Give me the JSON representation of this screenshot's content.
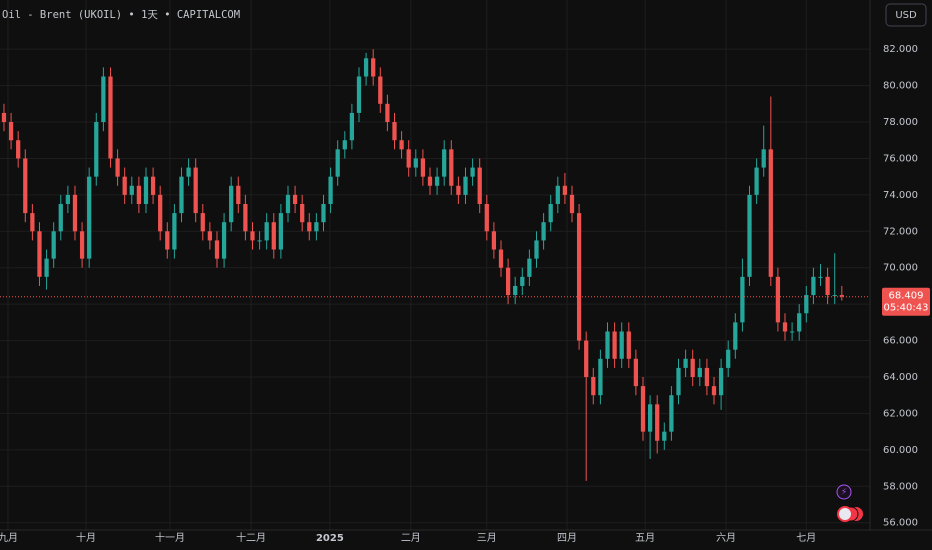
{
  "chart_data": {
    "type": "candlestick",
    "title": "Oil - Brent (UKOIL) • 1天 • CAPITALCOM",
    "currency": "USD",
    "last_price": 68.409,
    "countdown": "05:40:43",
    "up_color": "#26a69a",
    "down_color": "#ef5350",
    "grid": true,
    "xlim": [
      -0.56,
      121.97
    ],
    "xticks": [
      {
        "value": 0.56,
        "label": "九月"
      },
      {
        "value": 11.55,
        "label": "十月"
      },
      {
        "value": 23.38,
        "label": "十一月"
      },
      {
        "value": 34.8,
        "label": "十二月"
      },
      {
        "value": 45.9,
        "label": "2025"
      },
      {
        "value": 57.3,
        "label": "二月"
      },
      {
        "value": 68,
        "label": "三月"
      },
      {
        "value": 79.3,
        "label": "四月"
      },
      {
        "value": 90.3,
        "label": "五月"
      },
      {
        "value": 101.7,
        "label": "六月"
      },
      {
        "value": 113,
        "label": "七月"
      }
    ],
    "ylim": [
      55.6,
      84.7
    ],
    "yticks": [
      {
        "value": 56,
        "label": "56.000"
      },
      {
        "value": 58,
        "label": "58.000"
      },
      {
        "value": 60,
        "label": "60.000"
      },
      {
        "value": 62,
        "label": "62.000"
      },
      {
        "value": 64,
        "label": "64.000"
      },
      {
        "value": 66,
        "label": "66.000"
      },
      {
        "value": 68,
        "label": "68.000"
      },
      {
        "value": 70,
        "label": "70.000"
      },
      {
        "value": 72,
        "label": "72.000"
      },
      {
        "value": 74,
        "label": "74.000"
      },
      {
        "value": 76,
        "label": "76.000"
      },
      {
        "value": 78,
        "label": "78.000"
      },
      {
        "value": 80,
        "label": "80.000"
      },
      {
        "value": 82,
        "label": "82.000"
      }
    ],
    "open": [
      78.5,
      78,
      77,
      76,
      73,
      72,
      69.5,
      70.5,
      72,
      73.5,
      74,
      72,
      70.5,
      75,
      78,
      80.5,
      76,
      75,
      74,
      74.5,
      73.5,
      75,
      74,
      72,
      71,
      73,
      75,
      75.5,
      73,
      72,
      71.5,
      70.5,
      72.5,
      74.5,
      73.5,
      72,
      71.5,
      71.5,
      72.5,
      71,
      73,
      74,
      73.5,
      72.5,
      72,
      72.5,
      73.5,
      75,
      76.5,
      77,
      78.5,
      80.5,
      81.5,
      80.5,
      79,
      78,
      77,
      76.5,
      75.5,
      76,
      75,
      74.5,
      75,
      76.5,
      74.5,
      74,
      75,
      75.5,
      73.5,
      72,
      71,
      70,
      68.5,
      69,
      69.5,
      70.5,
      71.5,
      72.5,
      73.5,
      74.5,
      74,
      73,
      66,
      64,
      63,
      65,
      66.5,
      65,
      66.5,
      65,
      63.5,
      61,
      62.5,
      60.5,
      61,
      63,
      64.5,
      65,
      64,
      64.5,
      63.5,
      63,
      64.5,
      65.5,
      67,
      69.5,
      74,
      75.5,
      76.5,
      69.5,
      67,
      66.5,
      66.5,
      67.5,
      68.5,
      69.5,
      69.5,
      68.5,
      68.5
    ],
    "high": [
      79,
      78.5,
      77.5,
      76.5,
      73.5,
      72.5,
      71,
      72.5,
      74,
      74.5,
      74.5,
      72.5,
      75.5,
      78.5,
      81,
      81,
      76.5,
      75.5,
      75,
      75,
      75.5,
      75.5,
      74.5,
      72.5,
      73.5,
      75.5,
      76,
      76,
      73.5,
      72.5,
      72,
      73,
      75,
      75,
      74,
      72.5,
      72,
      73,
      73,
      73.5,
      74.5,
      74.5,
      74,
      73,
      73,
      74,
      75.5,
      77,
      77.5,
      79,
      81,
      81.8,
      82,
      81,
      79.5,
      78.5,
      77.5,
      77,
      76.5,
      76.5,
      75.5,
      75.5,
      77,
      77,
      75,
      75.5,
      76,
      76,
      74,
      72.5,
      71.5,
      70.5,
      69.5,
      70,
      71,
      72,
      73,
      74,
      75,
      75.2,
      74.5,
      73.5,
      66.5,
      64.5,
      65.5,
      67,
      67,
      67,
      67,
      65.5,
      64,
      63,
      63,
      61.5,
      63.5,
      65,
      65.5,
      65.5,
      65,
      65,
      64,
      65,
      66,
      67.5,
      70.5,
      74.5,
      76,
      77.8,
      79.4,
      70,
      67.5,
      67,
      68,
      69,
      70,
      70.2,
      70,
      70.8,
      69
    ],
    "low": [
      77.5,
      76.5,
      75.5,
      72.5,
      71.5,
      69,
      68.8,
      70,
      71.5,
      73,
      71.5,
      70,
      70,
      74.5,
      77.5,
      75.5,
      74.5,
      73.5,
      73.5,
      73,
      73,
      73.5,
      71.5,
      70.5,
      70.5,
      72.5,
      74.5,
      72.5,
      71.5,
      71,
      70,
      70,
      72,
      73,
      71.5,
      71,
      71,
      71,
      70.5,
      70.5,
      72.5,
      73,
      72,
      71.5,
      71.5,
      72,
      73,
      74.5,
      76,
      76.5,
      78,
      80,
      80,
      78.5,
      77.5,
      76.5,
      76,
      75,
      75,
      74.5,
      74,
      74,
      74.5,
      74,
      73.5,
      73.5,
      74.5,
      73,
      71.5,
      70.5,
      69.5,
      68,
      68,
      68.5,
      69,
      70,
      71,
      72,
      73,
      73.5,
      72.5,
      65.5,
      58.3,
      62.5,
      62.5,
      64.5,
      64.5,
      64.5,
      64.5,
      63,
      60.5,
      59.5,
      59.8,
      60,
      60.5,
      62.5,
      64,
      63.5,
      63.5,
      63,
      62.5,
      62.2,
      64,
      65,
      66.5,
      69,
      73.5,
      75,
      69,
      66.5,
      66,
      66,
      66,
      67,
      68,
      69,
      68,
      68,
      68.2
    ],
    "close": [
      78,
      77,
      76,
      73,
      72,
      69.5,
      70.5,
      72,
      73.5,
      74,
      72,
      70.5,
      75,
      78,
      80.5,
      76,
      75,
      74,
      74.5,
      73.5,
      75,
      74,
      72,
      71,
      73,
      75,
      75.5,
      73,
      72,
      71.5,
      70.5,
      72.5,
      74.5,
      73.5,
      72,
      71.5,
      71.5,
      72.5,
      71,
      73,
      74,
      73.5,
      72.5,
      72,
      72.5,
      73.5,
      75,
      76.5,
      77,
      78.5,
      80.5,
      81.5,
      80.5,
      79,
      78,
      77,
      76.5,
      75.5,
      76,
      75,
      74.5,
      75,
      76.5,
      74.5,
      74,
      75,
      75.5,
      73.5,
      72,
      71,
      70,
      68.5,
      69,
      69.5,
      70.5,
      71.5,
      72.5,
      73.5,
      74.5,
      74,
      73,
      66,
      64,
      63,
      65,
      66.5,
      65,
      66.5,
      65,
      63.5,
      61,
      62.5,
      60.5,
      61,
      63,
      64.5,
      65,
      64,
      64.5,
      63.5,
      63,
      64.5,
      65.5,
      67,
      69.5,
      74,
      75.5,
      76.5,
      69.5,
      67,
      66.5,
      66.5,
      67.5,
      68.5,
      69.5,
      69.5,
      68.5,
      68.5,
      68.409
    ]
  }
}
